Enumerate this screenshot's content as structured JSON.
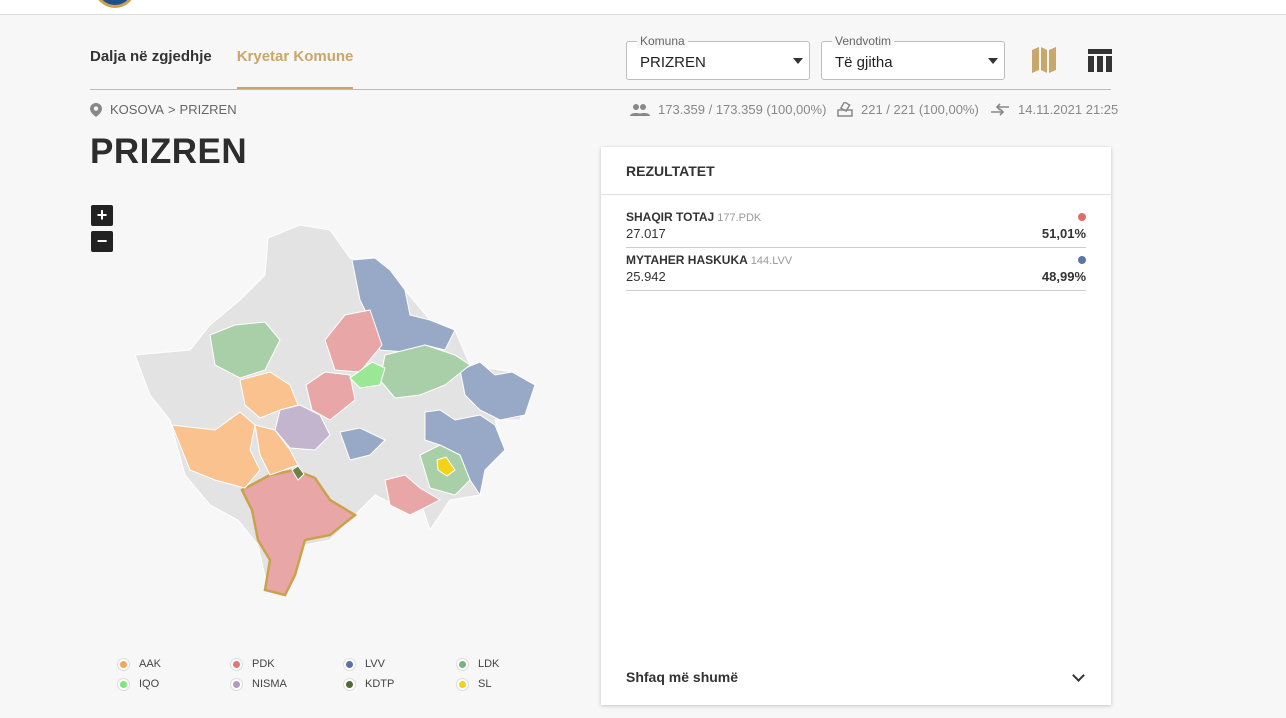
{
  "tabs": [
    {
      "label": "Dalja në zgjedhje",
      "active": false
    },
    {
      "label": "Kryetar Komune",
      "active": true
    }
  ],
  "filters": {
    "komuna": {
      "label": "Komuna",
      "value": "PRIZREN"
    },
    "vendvotim": {
      "label": "Vendvotim",
      "value": "Të gjitha"
    }
  },
  "icons": {
    "map_view": "map-icon",
    "table_view": "table-icon"
  },
  "breadcrumb": {
    "root": "KOSOVA",
    "separator": ">",
    "current": "PRIZREN"
  },
  "stats": {
    "voters": "173.359 / 173.359 (100,00%)",
    "stations": "221 / 221 (100,00%)",
    "updated": "14.11.2021 21:25"
  },
  "page_title": "PRIZREN",
  "zoom": {
    "in": "+",
    "out": "−"
  },
  "results": {
    "heading": "REZULTATET",
    "candidates": [
      {
        "name": "SHAQIR TOTAJ",
        "party": "177.PDK",
        "votes": "27.017",
        "percent": "51,01%",
        "color": "#e06c6c"
      },
      {
        "name": "MYTAHER HASKUKA",
        "party": "144.LVV",
        "votes": "25.942",
        "percent": "48,99%",
        "color": "#5b76a6"
      }
    ],
    "show_more": "Shfaq më shumë"
  },
  "legend": [
    {
      "label": "AAK",
      "color": "#f5a55a"
    },
    {
      "label": "PDK",
      "color": "#e07777"
    },
    {
      "label": "LVV",
      "color": "#5b6fa8"
    },
    {
      "label": "LDK",
      "color": "#79b27a"
    },
    {
      "label": "IQO",
      "color": "#7de87a"
    },
    {
      "label": "NISMA",
      "color": "#b39bc1"
    },
    {
      "label": "KDTP",
      "color": "#4f6a33"
    },
    {
      "label": "SL",
      "color": "#f2d31a"
    }
  ],
  "colors": {
    "accent": "#c9a66a",
    "map_neutral": "#e3e3e3"
  }
}
